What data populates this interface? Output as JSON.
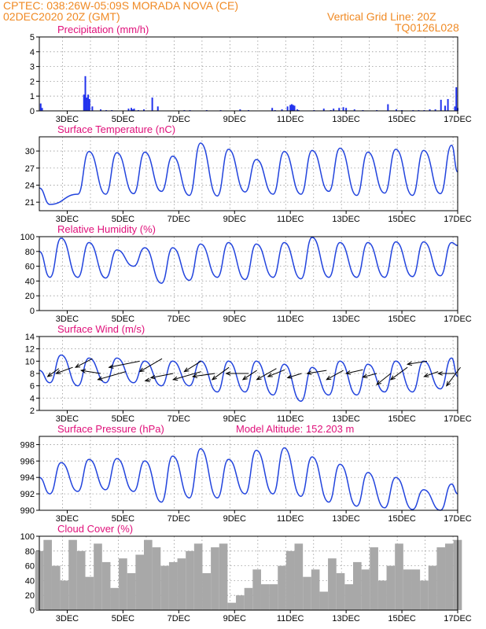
{
  "header": {
    "left1": "CPTEC:   038:26W-05:09S   MORADA NOVA (CE)",
    "left2": "02DEC2020 20Z (GMT)",
    "right1": "Vertical Grid Line: 20Z",
    "right2": "TQ0126L028"
  },
  "colors": {
    "header": "#f08a24",
    "title": "#e0107a",
    "line": "#2244dd",
    "bar": "#2233ee",
    "cloud": "#a8a8a8"
  },
  "x_ticks": [
    "3DEC",
    "5DEC",
    "7DEC",
    "9DEC",
    "11DEC",
    "13DEC",
    "15DEC",
    "17DEC"
  ],
  "chart_data": [
    {
      "id": "precip",
      "type": "bar",
      "title": "Precipitation (mm/h)",
      "ylim": [
        0,
        5
      ],
      "yticks": [
        "0",
        "1",
        "2",
        "3",
        "4",
        "5"
      ],
      "x_unit": "day of December 2020",
      "x": [
        2.05,
        2.1,
        3.6,
        3.65,
        3.7,
        3.75,
        3.8,
        3.9,
        4.2,
        4.4,
        4.6,
        5.2,
        5.3,
        5.35,
        5.4,
        5.55,
        5.75,
        6.05,
        6.25,
        7.2,
        7.4,
        8.0,
        8.5,
        9.2,
        9.5,
        10.35,
        10.45,
        10.7,
        10.9,
        11.0,
        11.05,
        11.1,
        11.15,
        11.25,
        11.3,
        11.85,
        12.2,
        12.45,
        12.55,
        12.75,
        12.9,
        13.0,
        13.3,
        13.6,
        14.1,
        14.5,
        14.8,
        15.0,
        15.4,
        15.6,
        15.8,
        16.0,
        16.2,
        16.4,
        16.55,
        16.65,
        16.9,
        16.95,
        17.0
      ],
      "values": [
        0.5,
        0.2,
        1.1,
        2.35,
        0.9,
        1.1,
        0.8,
        0.3,
        0.1,
        0.05,
        0.05,
        0.15,
        0.2,
        0.1,
        0.15,
        0.05,
        0.1,
        0.9,
        0.3,
        0.05,
        0.05,
        0.05,
        0.05,
        0.1,
        0.05,
        0.2,
        0.05,
        0.1,
        0.3,
        0.4,
        0.45,
        0.4,
        0.35,
        0.1,
        0.05,
        0.05,
        0.15,
        0.05,
        0.15,
        0.2,
        0.25,
        0.2,
        0.1,
        0.05,
        0.05,
        0.45,
        0.1,
        0.05,
        0.05,
        0.05,
        0.05,
        0.1,
        0.1,
        0.75,
        0.35,
        0.8,
        0.3,
        1.6,
        0.2
      ]
    },
    {
      "id": "temp",
      "type": "line",
      "title": "Surface Temperature (nC)",
      "ylim": [
        19.5,
        32.5
      ],
      "yticks": [
        "21",
        "24",
        "27",
        "30"
      ],
      "daily_max": [
        null,
        29.9,
        29.7,
        29.8,
        29.1,
        31.4,
        30.3,
        28.5,
        29.9,
        30.1,
        30.5,
        29.8,
        30.3,
        30.1,
        31.0,
        30.2,
        29.0
      ],
      "daily_min": [
        20.6,
        22.4,
        22.4,
        22.5,
        22.9,
        22.2,
        22.1,
        22.8,
        22.4,
        22.4,
        22.9,
        22.2,
        22.6,
        22.2,
        22.5,
        22.2,
        22.7
      ],
      "first": 23.5,
      "last": 26.3
    },
    {
      "id": "rh",
      "type": "line",
      "title": "Relative Humidity (%)",
      "ylim": [
        0,
        100
      ],
      "yticks": [
        "0",
        "20",
        "40",
        "60",
        "80",
        "100"
      ],
      "daily_max": [
        98,
        92,
        82,
        85,
        85,
        90,
        92,
        90,
        92,
        99,
        92,
        92,
        93,
        93,
        92,
        92,
        96
      ],
      "daily_min": [
        45,
        45,
        44,
        60,
        37,
        41,
        45,
        42,
        45,
        43,
        45,
        45,
        45,
        46,
        47,
        48,
        45
      ],
      "first": 80,
      "last": 88
    },
    {
      "id": "wind",
      "type": "line",
      "title": "Surface Wind (m/s)",
      "ylim": [
        2,
        14
      ],
      "yticks": [
        "2",
        "4",
        "6",
        "8",
        "10",
        "12",
        "14"
      ],
      "daily_max": [
        11.0,
        10.5,
        10.5,
        10.0,
        10.0,
        10.0,
        10.0,
        10.0,
        9.5,
        9.0,
        10.0,
        9.5,
        10.0,
        10.0,
        10.5,
        10.5,
        10.0
      ],
      "daily_min": [
        6.5,
        6.0,
        6.5,
        6.5,
        6.0,
        6.0,
        5.0,
        5.0,
        4.5,
        3.5,
        4.5,
        4.5,
        5.0,
        5.0,
        5.5,
        3.5,
        6.5
      ],
      "first": 8.5,
      "last": 7.5,
      "arrows": [
        [
          2.3,
          7.5,
          2.7,
          8.8
        ],
        [
          3.3,
          9.0,
          3.9,
          10.4
        ],
        [
          2.6,
          8.0,
          3.2,
          9.0
        ],
        [
          3.5,
          8.5,
          4.2,
          8.0
        ],
        [
          4.5,
          9.0,
          5.6,
          10.0
        ],
        [
          4.1,
          7.0,
          5.1,
          8.3
        ],
        [
          5.6,
          8.3,
          6.4,
          10.4
        ],
        [
          6.0,
          7.3,
          6.8,
          8.0
        ],
        [
          6.8,
          7.0,
          7.8,
          8.3
        ],
        [
          7.2,
          8.3,
          7.8,
          10.0
        ],
        [
          7.5,
          7.5,
          8.3,
          8.0
        ],
        [
          8.2,
          7.0,
          8.8,
          9.0
        ],
        [
          8.7,
          8.0,
          9.5,
          8.0
        ],
        [
          9.3,
          7.0,
          9.8,
          8.5
        ],
        [
          9.8,
          7.0,
          10.5,
          8.8
        ],
        [
          10.2,
          7.5,
          10.8,
          8.6
        ],
        [
          10.9,
          7.3,
          11.4,
          8.0
        ],
        [
          11.6,
          8.0,
          12.3,
          8.5
        ],
        [
          12.3,
          7.0,
          12.9,
          8.5
        ],
        [
          13.0,
          8.0,
          13.6,
          8.6
        ],
        [
          13.6,
          7.4,
          14.1,
          8.0
        ],
        [
          14.1,
          6.2,
          14.6,
          8.0
        ],
        [
          14.6,
          7.0,
          15.2,
          9.0
        ],
        [
          15.2,
          9.5,
          15.9,
          10.0
        ],
        [
          15.8,
          7.5,
          16.3,
          8.3
        ],
        [
          16.6,
          6.0,
          17.1,
          9.0
        ],
        [
          5.8,
          6.8,
          6.0,
          7.0
        ],
        [
          16.3,
          8.0,
          16.9,
          8.0
        ]
      ]
    },
    {
      "id": "pres",
      "type": "line",
      "title": "Surface Pressure (hPa)",
      "extra_label": "Model Altitude: 152.203 m",
      "ylim": [
        990,
        999
      ],
      "yticks": [
        "990",
        "992",
        "994",
        "996",
        "998"
      ],
      "daily_max": [
        995.8,
        996.2,
        996.3,
        996.0,
        996.6,
        997.5,
        996.2,
        997.3,
        997.6,
        996.5,
        995.6,
        994.6,
        994.0,
        992.5,
        993.2,
        994.2,
        994.5
      ],
      "daily_min": [
        992.0,
        992.3,
        992.5,
        992.3,
        991.0,
        991.5,
        991.5,
        992.0,
        992.0,
        991.7,
        991.0,
        990.5,
        990.3,
        990.1,
        990.0,
        989.8,
        989.8
      ],
      "first": 994.0,
      "last": 992.0
    },
    {
      "id": "cloud",
      "type": "bar",
      "title": "Cloud Cover (%)",
      "ylim": [
        0,
        100
      ],
      "yticks": [
        "0",
        "20",
        "40",
        "60",
        "80",
        "100"
      ],
      "x_unit": "day of December 2020",
      "x": [
        2.0,
        2.3,
        2.6,
        2.9,
        3.2,
        3.5,
        3.8,
        4.1,
        4.4,
        4.7,
        5.0,
        5.3,
        5.6,
        5.9,
        6.2,
        6.5,
        6.8,
        7.1,
        7.4,
        7.7,
        8.0,
        8.3,
        8.6,
        8.9,
        9.2,
        9.5,
        9.8,
        10.1,
        10.4,
        10.7,
        11.0,
        11.3,
        11.6,
        11.9,
        12.2,
        12.5,
        12.8,
        13.1,
        13.4,
        13.7,
        14.0,
        14.3,
        14.6,
        14.9,
        15.2,
        15.5,
        15.8,
        16.1,
        16.4,
        16.7,
        17.0
      ],
      "values": [
        80,
        95,
        60,
        40,
        95,
        80,
        45,
        90,
        65,
        30,
        70,
        50,
        75,
        95,
        85,
        60,
        65,
        70,
        80,
        90,
        50,
        85,
        90,
        10,
        20,
        30,
        55,
        35,
        35,
        60,
        80,
        90,
        45,
        55,
        25,
        70,
        50,
        35,
        65,
        55,
        85,
        40,
        60,
        90,
        55,
        55,
        40,
        60,
        85,
        90,
        95
      ]
    }
  ]
}
